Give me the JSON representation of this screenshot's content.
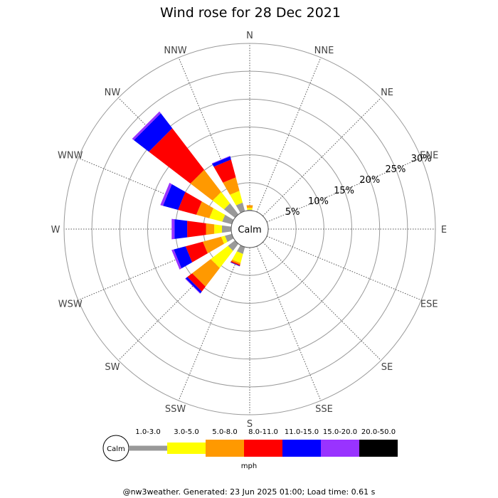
{
  "chart_data": {
    "type": "windrose",
    "title": "Wind rose for 28 Dec 2021",
    "directions": [
      "N",
      "NNE",
      "NE",
      "ENE",
      "E",
      "ESE",
      "SE",
      "SSE",
      "S",
      "SSW",
      "SW",
      "WSW",
      "W",
      "WNW",
      "NW",
      "NNW"
    ],
    "rlim_percent": [
      0,
      30
    ],
    "ring_labels": [
      "5%",
      "10%",
      "15%",
      "20%",
      "25%",
      "30%"
    ],
    "ring_values": [
      5,
      10,
      15,
      20,
      25,
      30
    ],
    "calm_label": "Calm",
    "unit": "mph",
    "bins": [
      {
        "label": "1.0-3.0",
        "color": "#999999"
      },
      {
        "label": "3.0-5.0",
        "color": "#ffff00"
      },
      {
        "label": "5.0-8.0",
        "color": "#ff9900"
      },
      {
        "label": "8.0-11.0",
        "color": "#ff0000"
      },
      {
        "label": "11.0-15.0",
        "color": "#0000ff"
      },
      {
        "label": "15.0-20.0",
        "color": "#9933ff"
      },
      {
        "label": "20.0-50.0",
        "color": "#000000"
      }
    ],
    "series": {
      "N": [
        0.2,
        0.3,
        0.5,
        0,
        0,
        0,
        0
      ],
      "NNE": [
        0,
        0,
        0,
        0,
        0,
        0,
        0
      ],
      "NE": [
        0,
        0,
        0,
        0,
        0,
        0,
        0
      ],
      "ENE": [
        0,
        0,
        0,
        0,
        0,
        0,
        0
      ],
      "E": [
        0,
        0,
        0,
        0,
        0,
        0,
        0
      ],
      "ESE": [
        0,
        0,
        0,
        0,
        0,
        0,
        0
      ],
      "SE": [
        0,
        0,
        0,
        0,
        0,
        0,
        0
      ],
      "SSE": [
        0,
        0,
        0,
        0,
        0,
        0,
        0
      ],
      "S": [
        0,
        0,
        0,
        0,
        0,
        0,
        0
      ],
      "SSW": [
        1.3,
        1.7,
        0.3,
        0.2,
        0.1,
        0,
        0
      ],
      "SW": [
        1.6,
        3.9,
        4.2,
        1.1,
        0.4,
        0.1,
        0
      ],
      "WSW": [
        1.3,
        0.7,
        3.4,
        3.2,
        2.2,
        0.4,
        0
      ],
      "W": [
        1.7,
        1.4,
        1.5,
        3.4,
        2.3,
        0.5,
        0
      ],
      "WNW": [
        1.8,
        2.4,
        2.4,
        3.4,
        2.8,
        0.5,
        0
      ],
      "NW": [
        2.5,
        2.6,
        5.0,
        9.4,
        3.4,
        0.4,
        0
      ],
      "NNW": [
        1.6,
        2.2,
        2.5,
        3.3,
        0.6,
        0.1,
        0
      ]
    }
  },
  "footer": "@nw3weather. Generated: 23 Jun 2025 01:00; Load time: 0.61 s"
}
